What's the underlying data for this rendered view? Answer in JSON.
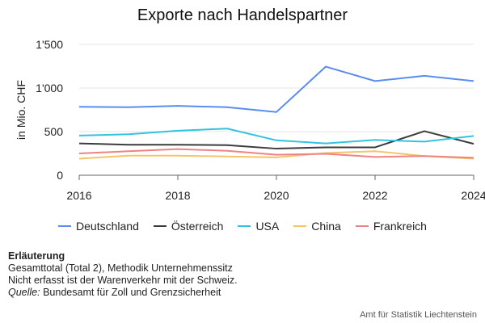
{
  "chart_data": {
    "type": "line",
    "title": "Exporte nach Handelspartner",
    "ylabel": "in Mio. CHF",
    "xlabel": "",
    "x": [
      2016,
      2017,
      2018,
      2019,
      2020,
      2021,
      2022,
      2023,
      2024
    ],
    "xticks": [
      2016,
      2018,
      2020,
      2022,
      2024
    ],
    "xtick_labels": [
      "2016",
      "2018",
      "2020",
      "2022",
      "2024"
    ],
    "yticks": [
      0,
      500,
      1000,
      1500
    ],
    "ytick_labels": [
      "0",
      "500",
      "1'000",
      "1'500"
    ],
    "ylim": [
      0,
      1500
    ],
    "grid": true,
    "legend_position": "bottom",
    "series": [
      {
        "name": "Deutschland",
        "color": "#5b8def",
        "values": [
          785,
          780,
          795,
          780,
          725,
          1245,
          1080,
          1140,
          1080
        ]
      },
      {
        "name": "Österreich",
        "color": "#3c3c3c",
        "values": [
          365,
          350,
          350,
          345,
          305,
          320,
          320,
          505,
          360
        ]
      },
      {
        "name": "USA",
        "color": "#35c2e0",
        "values": [
          455,
          470,
          510,
          535,
          400,
          365,
          405,
          385,
          450
        ]
      },
      {
        "name": "China",
        "color": "#f5c469",
        "values": [
          190,
          225,
          225,
          215,
          205,
          255,
          275,
          220,
          190
        ]
      },
      {
        "name": "Frankreich",
        "color": "#ee8383",
        "values": [
          250,
          275,
          300,
          280,
          235,
          245,
          210,
          220,
          200
        ]
      }
    ]
  },
  "notes": {
    "heading": "Erläuterung",
    "line1": "Gesamttotal (Total 2), Methodik Unternehmenssitz",
    "line2": "Nicht erfasst ist der Warenverkehr mit der Schweiz.",
    "source_label": "Quelle:",
    "source_text": "Bundesamt für Zoll und Grenzsicherheit"
  },
  "credit": "Amt für Statistik Liechtenstein"
}
